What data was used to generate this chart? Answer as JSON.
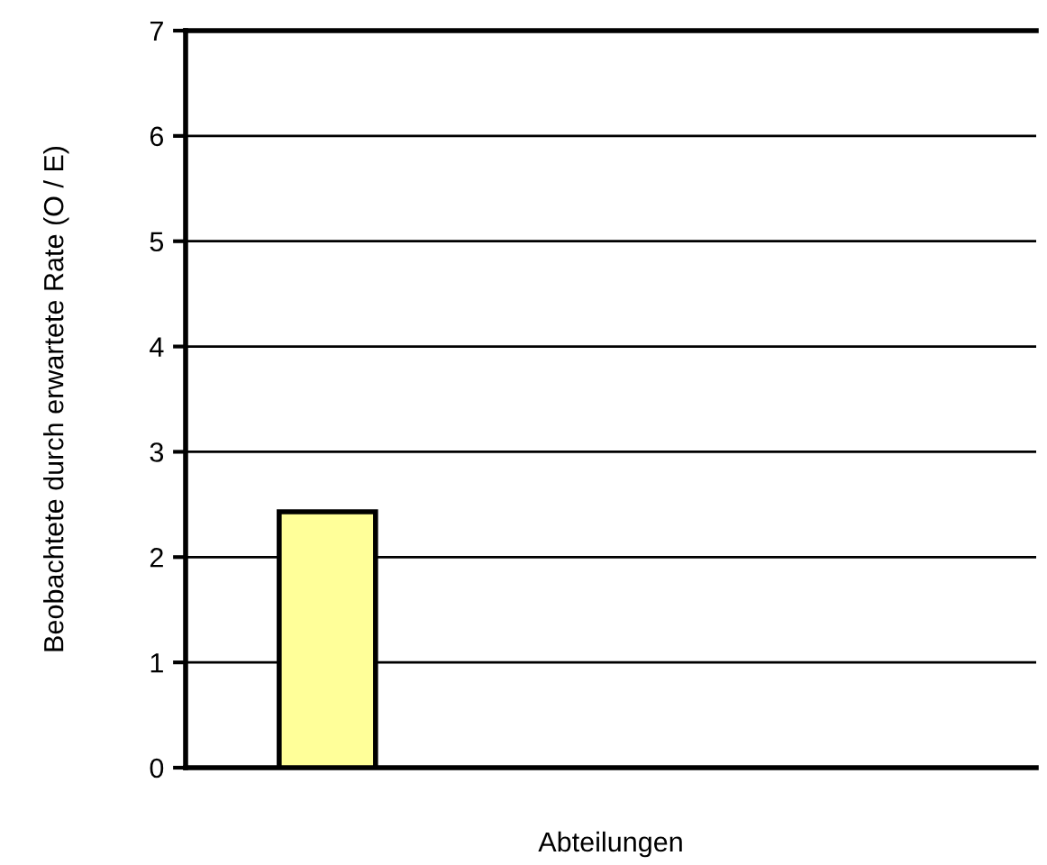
{
  "chart_data": {
    "type": "bar",
    "xlabel": "Abteilungen",
    "ylabel": "Beobachtete durch erwartete Rate (O / E)",
    "categories": [
      null,
      null,
      null
    ],
    "values": [
      2.43,
      null,
      null
    ],
    "color": "#ffff99",
    "ylim": [
      0,
      7
    ],
    "yticks": [
      0,
      1,
      2,
      3,
      4,
      5,
      6,
      7
    ],
    "grid": "y"
  }
}
